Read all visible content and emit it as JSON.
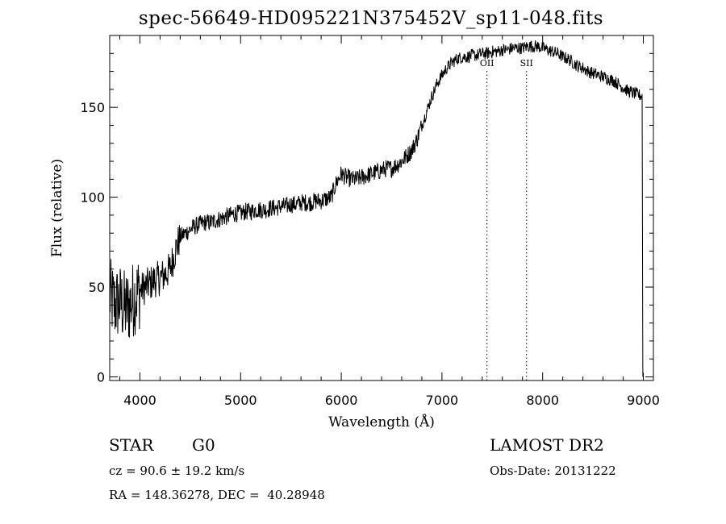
{
  "chart_data": {
    "type": "line",
    "title": "spec-56649-HD095221N375452V_sp11-048.fits",
    "xlabel": "Wavelength (Å)",
    "ylabel": "Flux (relative)",
    "xlim": [
      3700,
      9100
    ],
    "ylim": [
      -2,
      190
    ],
    "x_ticks": [
      4000,
      5000,
      6000,
      7000,
      8000,
      9000
    ],
    "y_ticks": [
      0,
      50,
      100,
      150
    ],
    "x_tick_labels": [
      "4000",
      "5000",
      "6000",
      "7000",
      "8000",
      "9000"
    ],
    "y_tick_labels": [
      "0",
      "50",
      "100",
      "150"
    ],
    "grid": false,
    "series": [
      {
        "x": [
          3700,
          3750,
          3800,
          3850,
          3900,
          3950,
          4000,
          4050,
          4100,
          4150,
          4200,
          4250,
          4300,
          4350,
          4400,
          4450,
          4500,
          4550,
          4600,
          4650,
          4700,
          4750,
          4800,
          4850,
          4900,
          4950,
          5000,
          5050,
          5100,
          5150,
          5200,
          5250,
          5300,
          5350,
          5400,
          5450,
          5500,
          5550,
          5600,
          5650,
          5700,
          5750,
          5800,
          5850,
          5900,
          5950,
          6000,
          6050,
          6100,
          6150,
          6200,
          6250,
          6300,
          6350,
          6400,
          6450,
          6500,
          6550,
          6600,
          6650,
          6700,
          6750,
          6800,
          6850,
          6900,
          6950,
          7000,
          7050,
          7100,
          7150,
          7200,
          7250,
          7300,
          7350,
          7400,
          7450,
          7500,
          7550,
          7600,
          7650,
          7700,
          7750,
          7800,
          7850,
          7900,
          7950,
          8000,
          8050,
          8100,
          8150,
          8200,
          8250,
          8300,
          8350,
          8400,
          8450,
          8500,
          8550,
          8600,
          8650,
          8700,
          8750,
          8800,
          8850,
          8900,
          8950,
          9000
        ],
        "y": [
          45,
          40,
          42,
          38,
          40,
          45,
          48,
          50,
          52,
          54,
          55,
          57,
          60,
          70,
          78,
          80,
          82,
          84,
          85,
          86,
          86,
          87,
          88,
          89,
          90,
          91,
          91,
          92,
          92,
          93,
          93,
          93,
          94,
          94,
          95,
          95,
          96,
          96,
          97,
          97,
          97,
          98,
          98,
          99,
          100,
          108,
          113,
          111,
          110,
          110,
          111,
          112,
          113,
          114,
          115,
          116,
          116,
          118,
          120,
          123,
          126,
          132,
          140,
          148,
          156,
          163,
          168,
          172,
          175,
          177,
          178,
          178,
          179,
          179,
          180,
          180,
          181,
          181,
          182,
          182,
          183,
          183,
          183,
          184,
          184,
          184,
          183,
          182,
          181,
          180,
          178,
          177,
          175,
          173,
          172,
          170,
          169,
          168,
          167,
          166,
          165,
          163,
          161,
          159,
          158,
          157,
          156
        ]
      }
    ],
    "annotations": [
      {
        "label": "OII",
        "x": 7447
      },
      {
        "label": "SII",
        "x": 7840
      }
    ]
  },
  "info": {
    "class": "STAR",
    "subclass": "G0",
    "survey": "LAMOST DR2",
    "cz": "cz = 90.6 ± 19.2 km/s",
    "obs_date": "Obs-Date: 20131222",
    "radec": "RA = 148.36278, DEC =  40.28948"
  }
}
